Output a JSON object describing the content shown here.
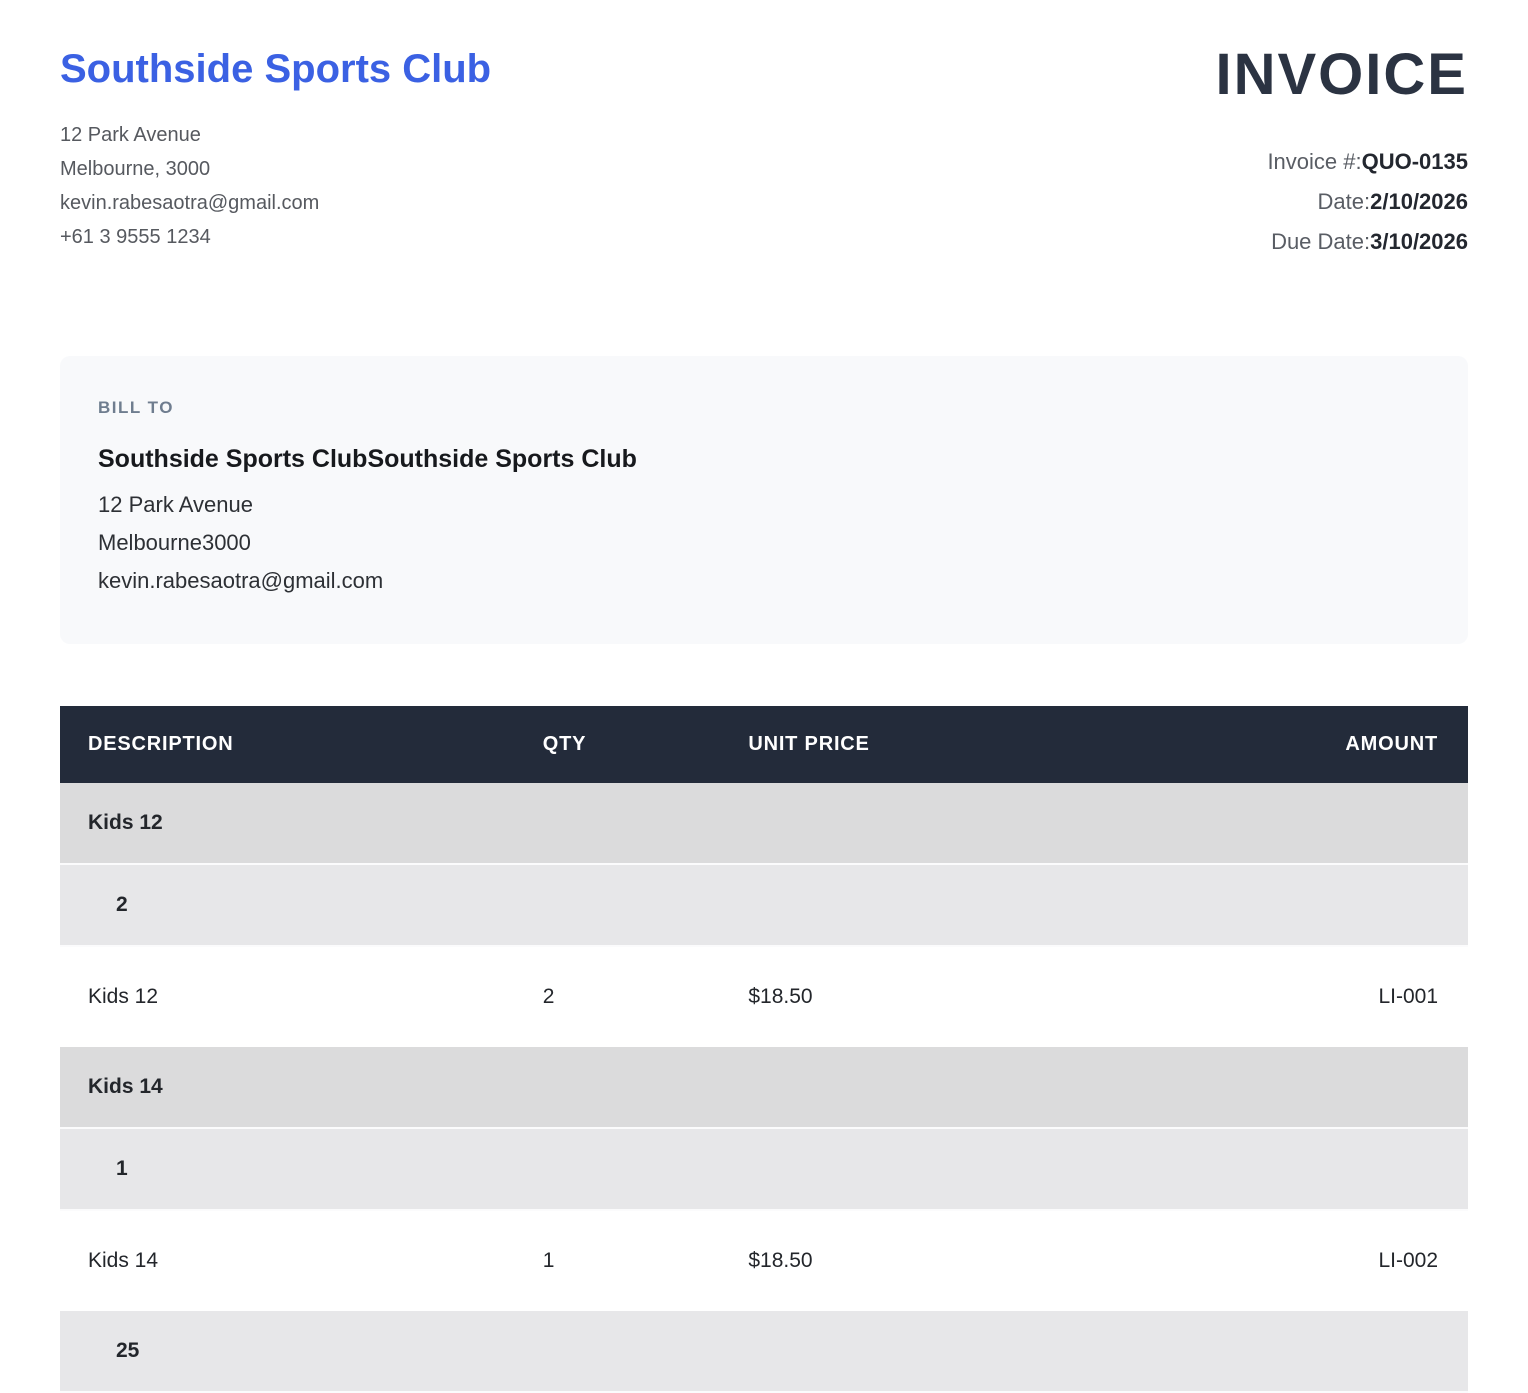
{
  "company": {
    "name": "Southside Sports Club",
    "address_line1": "12 Park Avenue",
    "address_line2": "Melbourne, 3000",
    "email": "kevin.rabesaotra@gmail.com",
    "phone": "+61 3 9555 1234"
  },
  "invoice": {
    "title": "INVOICE",
    "number_label": "Invoice #:",
    "number": "QUO-0135",
    "date_label": "Date:",
    "date": "2/10/2026",
    "due_date_label": "Due Date:",
    "due_date": "3/10/2026"
  },
  "bill_to": {
    "label": "BILL TO",
    "name": "Southside Sports ClubSouthside Sports Club",
    "address_line1": "12 Park Avenue",
    "address_line2": "Melbourne3000",
    "email": "kevin.rabesaotra@gmail.com"
  },
  "table": {
    "headers": [
      "DESCRIPTION",
      "QTY",
      "UNIT PRICE",
      "AMOUNT"
    ],
    "rows": [
      {
        "type": "group",
        "description": "Kids 12"
      },
      {
        "type": "qty",
        "description": "2"
      },
      {
        "type": "detail",
        "description": "Kids 12",
        "qty": "2",
        "unit_price": "$18.50",
        "amount": "LI-001"
      },
      {
        "type": "group",
        "description": "Kids 14"
      },
      {
        "type": "qty",
        "description": "1"
      },
      {
        "type": "detail",
        "description": "Kids 14",
        "qty": "1",
        "unit_price": "$18.50",
        "amount": "LI-002"
      },
      {
        "type": "qty",
        "description": "25"
      }
    ]
  },
  "colors": {
    "accent_blue": "#3b61e3",
    "invoice_title": "#2b3342",
    "table_header_bg": "#232b3a",
    "group_row_bg": "#dbdbdc",
    "qty_row_bg": "#e7e7e9",
    "billto_card_bg": "#f8f9fb"
  }
}
